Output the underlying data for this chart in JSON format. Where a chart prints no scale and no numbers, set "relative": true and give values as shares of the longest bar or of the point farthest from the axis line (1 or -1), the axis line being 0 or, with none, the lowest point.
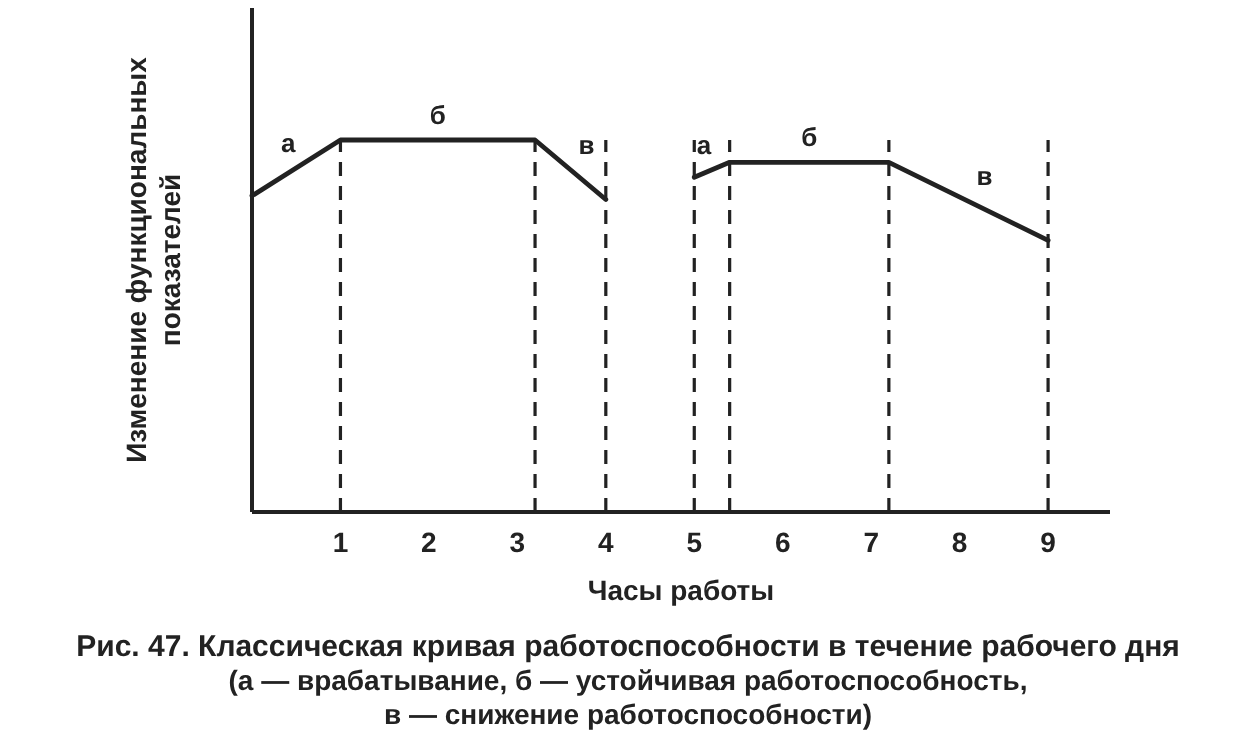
{
  "chart_data": {
    "type": "line",
    "relative": true,
    "title": "Рис. 47. Классическая кривая работоспособности в течение рабочего дня\n(а — врабатывание, б — устойчивая работоспособность,\nв — снижение работоспособности)",
    "xlabel": "Часы работы",
    "ylabel": "Изменение функциональных\nпоказателей",
    "xlim": [
      0,
      9.7
    ],
    "xticks": [
      1,
      2,
      3,
      4,
      5,
      6,
      7,
      8,
      9
    ],
    "tick_labels": "x",
    "grid": false,
    "marker": "none",
    "line_style": "solid",
    "series": [
      {
        "color": "#222222",
        "x": [
          0,
          1,
          3.2,
          4
        ],
        "values": [
          0.85,
          1,
          1,
          0.84
        ]
      },
      {
        "color": "#222222",
        "x": [
          5,
          5.4,
          7.2,
          9
        ],
        "values": [
          0.9,
          0.94,
          0.94,
          0.73
        ]
      }
    ],
    "ref_lines": [
      {
        "axis": "x",
        "value": 1,
        "line_style": "dashed",
        "color": "#222222"
      },
      {
        "axis": "x",
        "value": 3.2,
        "line_style": "dashed",
        "color": "#222222"
      },
      {
        "axis": "x",
        "value": 4,
        "line_style": "dashed",
        "color": "#222222"
      },
      {
        "axis": "x",
        "value": 5,
        "line_style": "dashed",
        "color": "#222222"
      },
      {
        "axis": "x",
        "value": 5.4,
        "line_style": "dashed",
        "color": "#222222"
      },
      {
        "axis": "x",
        "value": 7.2,
        "line_style": "dashed",
        "color": "#222222"
      },
      {
        "axis": "x",
        "value": 9,
        "line_style": "dashed",
        "color": "#222222"
      }
    ],
    "annotations": [
      "а",
      "б",
      "в",
      "а",
      "б",
      "в"
    ]
  }
}
